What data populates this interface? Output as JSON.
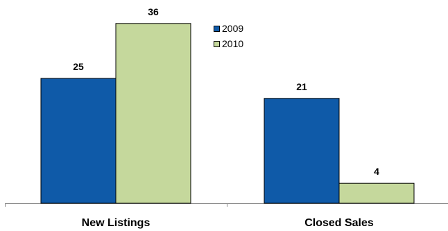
{
  "chart_data": {
    "type": "bar",
    "categories": [
      "New Listings",
      "Closed Sales"
    ],
    "series": [
      {
        "name": "2009",
        "values": [
          25,
          21
        ],
        "color": "#0F5AA8"
      },
      {
        "name": "2010",
        "values": [
          36,
          4
        ],
        "color": "#C5D89C"
      }
    ],
    "title": "",
    "xlabel": "",
    "ylabel": "",
    "ylim": [
      0,
      40
    ],
    "grid": false,
    "legend_position": "top-center",
    "data_labels": true
  }
}
